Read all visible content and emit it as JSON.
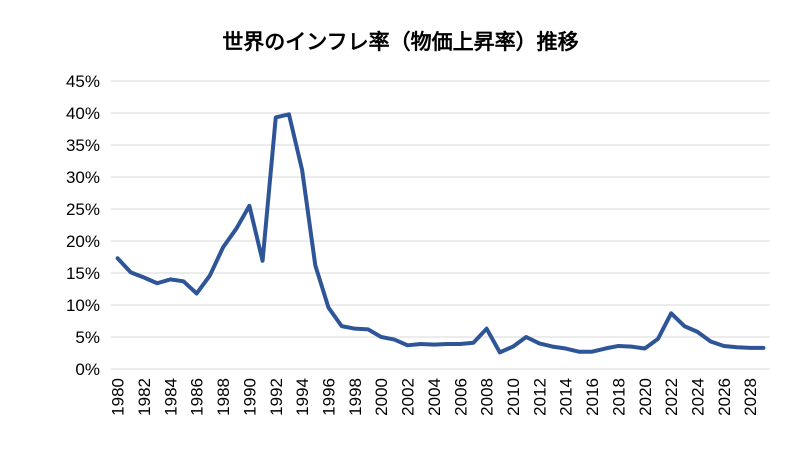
{
  "chart_data": {
    "type": "line",
    "title": "世界のインフレ率（物価上昇率）推移",
    "xlabel": "",
    "ylabel": "",
    "ylim": [
      0,
      45
    ],
    "yticks": [
      "0%",
      "5%",
      "10%",
      "15%",
      "20%",
      "25%",
      "30%",
      "35%",
      "40%",
      "45%"
    ],
    "xticks": [
      "1980",
      "1982",
      "1984",
      "1986",
      "1988",
      "1990",
      "1992",
      "1994",
      "1996",
      "1998",
      "2000",
      "2002",
      "2004",
      "2006",
      "2008",
      "2010",
      "2012",
      "2014",
      "2016",
      "2018",
      "2020",
      "2022",
      "2024",
      "2026",
      "2028"
    ],
    "grid": true,
    "line_color": "#2e5597",
    "x": [
      1980,
      1981,
      1982,
      1983,
      1984,
      1985,
      1986,
      1987,
      1988,
      1989,
      1990,
      1991,
      1992,
      1993,
      1994,
      1995,
      1996,
      1997,
      1998,
      1999,
      2000,
      2001,
      2002,
      2003,
      2004,
      2005,
      2006,
      2007,
      2008,
      2009,
      2010,
      2011,
      2012,
      2013,
      2014,
      2015,
      2016,
      2017,
      2018,
      2019,
      2020,
      2021,
      2022,
      2023,
      2024,
      2025,
      2026,
      2027,
      2028,
      2029
    ],
    "series": [
      {
        "values": [
          17.3,
          15.1,
          14.3,
          13.4,
          14.0,
          13.7,
          11.8,
          14.6,
          19.0,
          21.9,
          25.5,
          16.9,
          39.3,
          39.8,
          31.1,
          16.2,
          9.6,
          6.7,
          6.3,
          6.2,
          5.0,
          4.6,
          3.7,
          3.9,
          3.8,
          3.9,
          3.9,
          4.1,
          6.3,
          2.6,
          3.5,
          5.0,
          4.0,
          3.5,
          3.2,
          2.7,
          2.7,
          3.2,
          3.6,
          3.5,
          3.2,
          4.7,
          8.7,
          6.7,
          5.8,
          4.3,
          3.6,
          3.4,
          3.3,
          3.3
        ]
      }
    ]
  }
}
